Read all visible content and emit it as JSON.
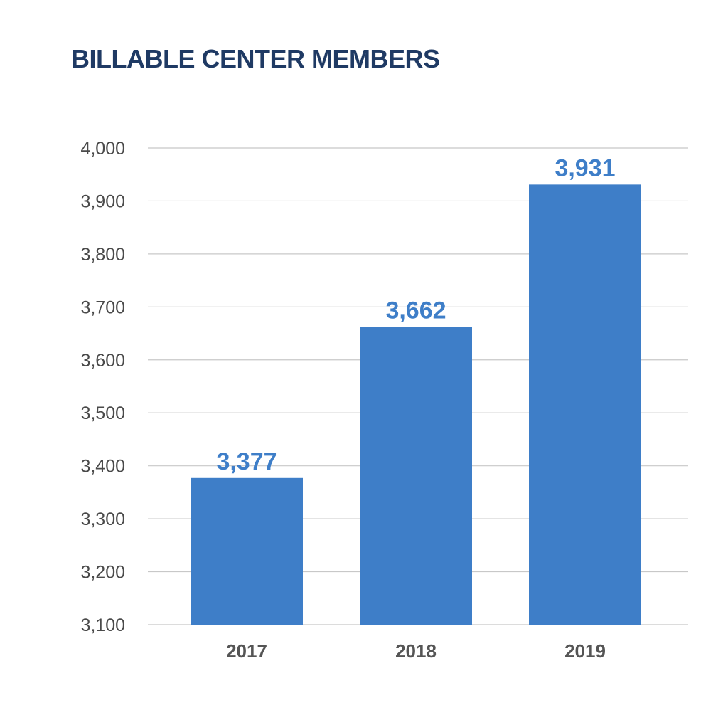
{
  "chart_data": {
    "type": "bar",
    "title": "BILLABLE CENTER MEMBERS",
    "xlabel": "",
    "ylabel": "",
    "categories": [
      "2017",
      "2018",
      "2019"
    ],
    "values": [
      3377,
      3662,
      3931
    ],
    "data_labels": [
      "3,377",
      "3,662",
      "3,931"
    ],
    "ylim": [
      3100,
      4000
    ],
    "yticks": [
      3100,
      3200,
      3300,
      3400,
      3500,
      3600,
      3700,
      3800,
      3900,
      4000
    ],
    "ytick_labels": [
      "3,100",
      "3,200",
      "3,300",
      "3,400",
      "3,500",
      "3,600",
      "3,700",
      "3,800",
      "3,900",
      "4,000"
    ],
    "grid": true,
    "legend": "none",
    "bar_color": "#3e7ec8",
    "label_color": "#3e7ec8",
    "title_color": "#1f3a64",
    "gridline_color": "#c8c8c8"
  }
}
